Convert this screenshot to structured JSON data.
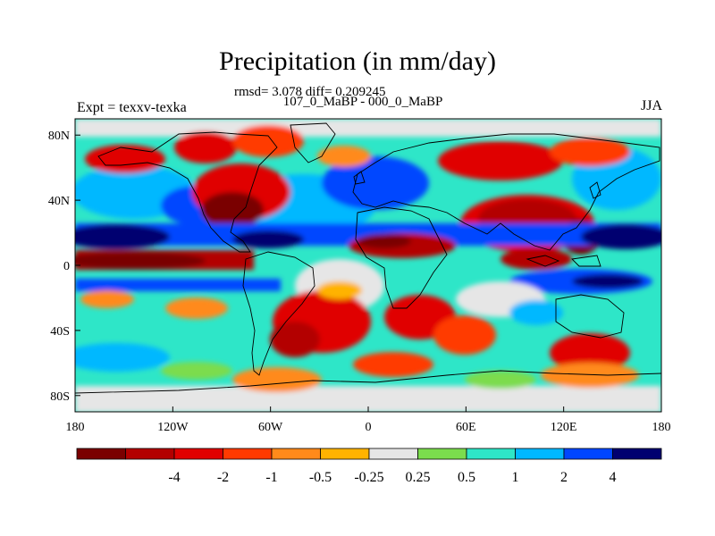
{
  "title": "Precipitation (in mm/day)",
  "stats_line": "rmsd= 3.078 diff= 0.209245",
  "comparison": "107_0_MaBP - 000_0_MaBP",
  "expt_label": "Expt = texxv-texka",
  "season": "JJA",
  "lon_ticks": [
    "180",
    "120W",
    "60W",
    "0",
    "60E",
    "120E",
    "180"
  ],
  "lat_ticks": [
    "80N",
    "40N",
    "0",
    "40S",
    "80S"
  ],
  "colorbar": {
    "colors": [
      "#7a0000",
      "#b30000",
      "#e00000",
      "#ff3a00",
      "#ff8a1a",
      "#ffb300",
      "#e6e6e6",
      "#7bdc4d",
      "#2ee6c8",
      "#00b8ff",
      "#0046ff",
      "#000070"
    ],
    "labels": [
      "-4",
      "-2",
      "-1",
      "-0.5",
      "-0.25",
      "0.25",
      "0.5",
      "1",
      "2",
      "4"
    ]
  },
  "colors": {
    "land_outline": "#000000",
    "background": "#ffffff"
  }
}
